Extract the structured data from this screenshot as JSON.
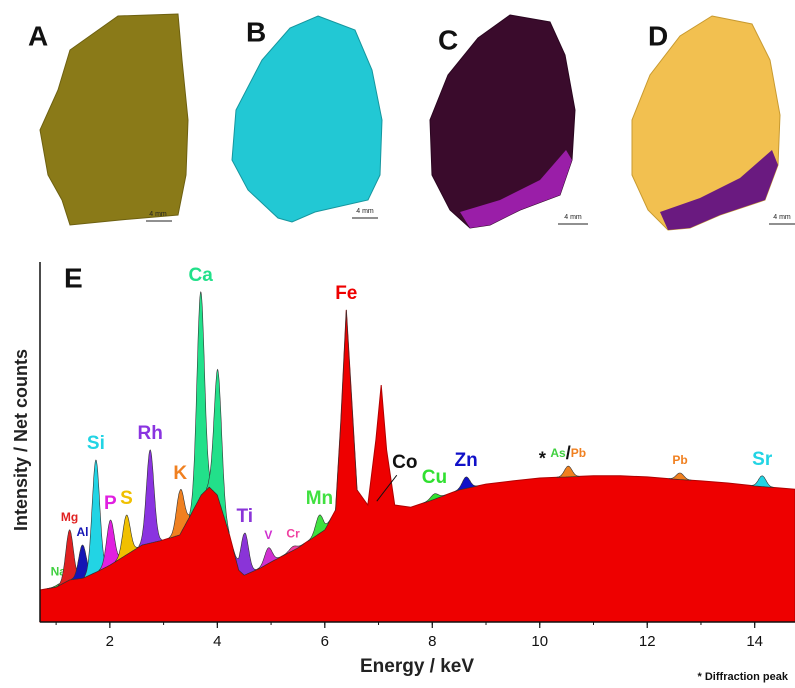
{
  "panels": [
    {
      "label": "A",
      "scale": "4 mm"
    },
    {
      "label": "B",
      "scale": "4 mm"
    },
    {
      "label": "C",
      "scale": "4 mm"
    },
    {
      "label": "D",
      "scale": "4 mm"
    }
  ],
  "chart_data": {
    "type": "area",
    "panel_label": "E",
    "xlabel": "Energy / keV",
    "ylabel": "Intensity / Net counts",
    "note": "* Diffraction peak",
    "xlim": [
      0.7,
      14.75
    ],
    "xticks": [
      2,
      4,
      6,
      8,
      10,
      12,
      14
    ],
    "ylim": [
      0,
      100
    ],
    "series": [
      {
        "name": "Fe",
        "color": "#ee0000",
        "x": [
          0.7,
          1.0,
          1.25,
          1.5,
          1.75,
          2.0,
          2.3,
          2.6,
          3.0,
          3.3,
          3.5,
          3.7,
          3.85,
          4.0,
          4.2,
          4.4,
          4.5,
          4.8,
          5.0,
          5.5,
          6.0,
          6.2,
          6.3,
          6.4,
          6.5,
          6.6,
          6.8,
          6.95,
          7.05,
          7.15,
          7.3,
          7.6,
          8.0,
          8.5,
          9.0,
          9.5,
          10.0,
          10.5,
          11.0,
          11.5,
          12.0,
          12.5,
          13.0,
          13.5,
          14.0,
          14.5,
          14.75
        ],
        "values": [
          8.9,
          9.7,
          11.7,
          12.2,
          13.9,
          15.8,
          18.6,
          21.4,
          22.8,
          24.2,
          29.7,
          35.3,
          37.5,
          35.3,
          25.6,
          14.4,
          13,
          15,
          16.7,
          20.6,
          25.6,
          31.1,
          56,
          86.7,
          61.7,
          36.7,
          32.5,
          50.6,
          65.8,
          47.8,
          32.5,
          31.9,
          33.9,
          36.7,
          38.3,
          39.2,
          40,
          40.3,
          40.6,
          40.6,
          40.3,
          39.7,
          39.2,
          38.6,
          37.8,
          37.2,
          36.9
        ]
      }
    ],
    "peaks": [
      {
        "label": "Na",
        "color": "#40d040",
        "energy": 1.04,
        "height": 10.5,
        "small": true
      },
      {
        "label": "Mg",
        "color": "#e02020",
        "energy": 1.25,
        "height": 25.6,
        "small": true
      },
      {
        "label": "Al",
        "color": "#1414b4",
        "energy": 1.49,
        "height": 21.4,
        "small": true
      },
      {
        "label": "Si",
        "color": "#22d4e4",
        "energy": 1.74,
        "height": 45
      },
      {
        "label": "P",
        "color": "#e020e0",
        "energy": 2.01,
        "height": 28.3
      },
      {
        "label": "S",
        "color": "#f0c000",
        "energy": 2.31,
        "height": 29.7
      },
      {
        "label": "Rh",
        "color": "#8a34e0",
        "energy": 2.75,
        "height": 47.8
      },
      {
        "label": "K",
        "color": "#f08020",
        "energy": 3.31,
        "height": 36.7
      },
      {
        "label": "Ca",
        "color": "#22e08a",
        "energy": 3.69,
        "height": 91.7
      },
      {
        "label": null,
        "color": "#22e08a",
        "energy": 4.01,
        "height": 70
      },
      {
        "label": "Ti",
        "color": "#8a34d8",
        "energy": 4.51,
        "height": 24.7
      },
      {
        "label": "V",
        "color": "#d030d0",
        "energy": 4.95,
        "height": 20.6,
        "small": true
      },
      {
        "label": "Cr",
        "color": "#f040a0",
        "energy": 5.41,
        "height": 21,
        "small": true
      },
      {
        "label": "Mn",
        "color": "#40e040",
        "energy": 5.9,
        "height": 29.7
      },
      {
        "label": "Fe",
        "color": "#ee0000",
        "energy": 6.4,
        "height": 86.7
      },
      {
        "label": "Co",
        "color": "#111111",
        "energy": 6.93,
        "height": 33,
        "callout": true
      },
      {
        "label": "Cu",
        "color": "#30e030",
        "energy": 8.04,
        "height": 35.6
      },
      {
        "label": "Zn",
        "color": "#1010c8",
        "energy": 8.63,
        "height": 40.3
      },
      {
        "label": "*",
        "color": "#111111",
        "energy": 10.05,
        "height": 40.6
      },
      {
        "label": [
          "As",
          "/",
          "Pb"
        ],
        "label_colors": [
          "#40d040",
          "#111111",
          "#f08020"
        ],
        "color": "#f08020",
        "energy": 10.53,
        "height": 43.3,
        "small": true
      },
      {
        "label": "Pb",
        "color": "#f08020",
        "energy": 12.61,
        "height": 41.4,
        "small": true
      },
      {
        "label": "Sr",
        "color": "#22d4e4",
        "energy": 14.14,
        "height": 40.6
      }
    ]
  }
}
